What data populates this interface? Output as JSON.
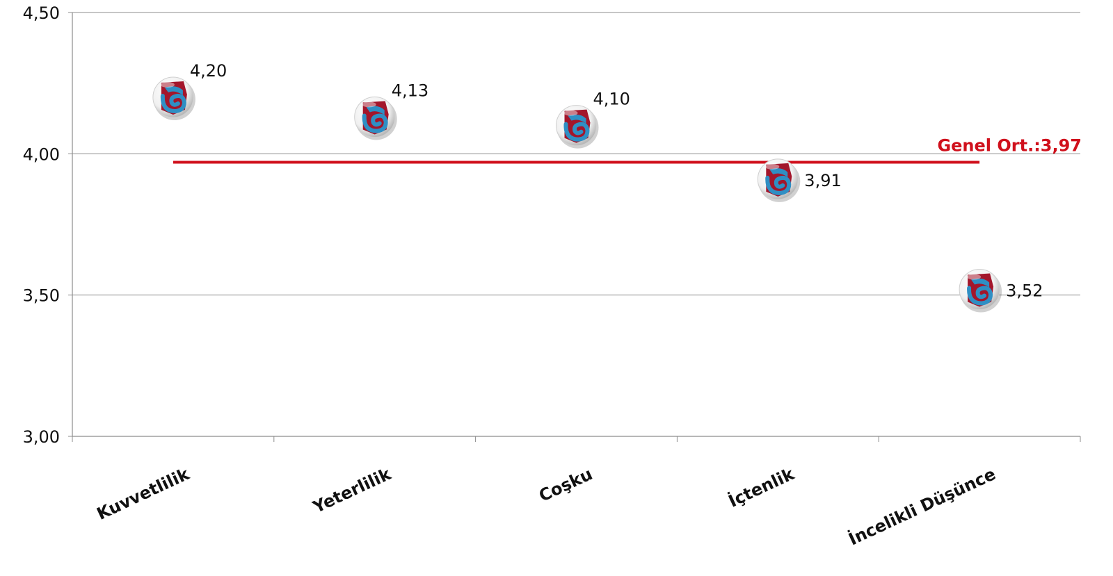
{
  "chart_data": {
    "type": "scatter",
    "categories": [
      "Kuvvetlilik",
      "Yeterlilik",
      "Coşku",
      "İçtenlik",
      "İncelikli Düşünce"
    ],
    "values": [
      4.2,
      4.13,
      4.1,
      3.91,
      3.52
    ],
    "value_labels": [
      "4,20",
      "4,13",
      "4,10",
      "3,91",
      "3,52"
    ],
    "ylim": [
      3.0,
      4.5
    ],
    "yticks": [
      3.0,
      3.5,
      4.0,
      4.5
    ],
    "ytick_labels": [
      "3,00",
      "3,50",
      "4,00",
      "4,50"
    ],
    "grid": true,
    "reference_line": {
      "value": 3.97,
      "label": "Genel Ort.:3,97",
      "color": "#d0101c"
    },
    "marker_icon": "club-crest-icon",
    "marker_colors": {
      "maroon": "#a3162b",
      "blue": "#2f8fc4"
    }
  }
}
